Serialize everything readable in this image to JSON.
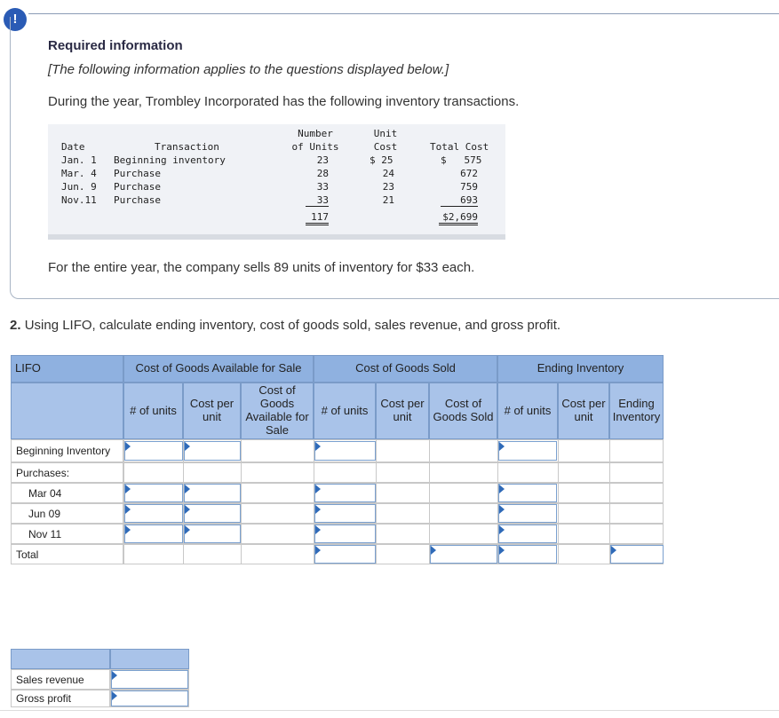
{
  "badge": "!",
  "required_title": "Required information",
  "note": "[The following information applies to the questions displayed below.]",
  "intro": "During the year, Trombley Incorporated has the following inventory transactions.",
  "inventory_table": {
    "headers": {
      "date": "Date",
      "transaction": "Transaction",
      "units_line1": "Number",
      "units_line2": "of Units",
      "cost_line1": "Unit",
      "cost_line2": "Cost",
      "total_cost": "Total Cost"
    },
    "rows": [
      {
        "date": "Jan. 1",
        "transaction": "Beginning inventory",
        "units": "23",
        "unit_cost": "$ 25",
        "total": "$   575"
      },
      {
        "date": "Mar. 4",
        "transaction": "Purchase",
        "units": "28",
        "unit_cost": "24",
        "total": "672"
      },
      {
        "date": "Jun. 9",
        "transaction": "Purchase",
        "units": "33",
        "unit_cost": "23",
        "total": "759"
      },
      {
        "date": "Nov.11",
        "transaction": "Purchase",
        "units": "33",
        "unit_cost": "21",
        "total": "693"
      }
    ],
    "total_units": "117",
    "total_cost": "$2,699"
  },
  "sales_note": "For the entire year, the company sells 89 units of inventory for $33 each.",
  "question": {
    "number": "2.",
    "text": "Using LIFO, calculate ending inventory, cost of goods sold, sales revenue, and gross profit."
  },
  "lifo_table": {
    "method_label": "LIFO",
    "groups": {
      "cogas": "Cost of Goods Available for Sale",
      "cogs": "Cost of Goods Sold",
      "ending": "Ending Inventory"
    },
    "subheaders": {
      "units": "# of units",
      "cost_per_unit": "Cost per unit",
      "cogas_total": "Cost of Goods Available for Sale",
      "cogs_units": "# of units",
      "cogs_cost_per_unit": "Cost per unit",
      "cogs_total": "Cost of Goods Sold",
      "ei_units": "# of units",
      "ei_cost_per_unit": "Cost per unit",
      "ei_total": "Ending Inventory"
    },
    "rows": {
      "beginning": "Beginning Inventory",
      "purchases": "Purchases:",
      "mar": "Mar 04",
      "jun": "Jun 09",
      "nov": "Nov 11",
      "total": "Total"
    }
  },
  "summary": {
    "sales_revenue": "Sales revenue",
    "gross_profit": "Gross profit"
  }
}
